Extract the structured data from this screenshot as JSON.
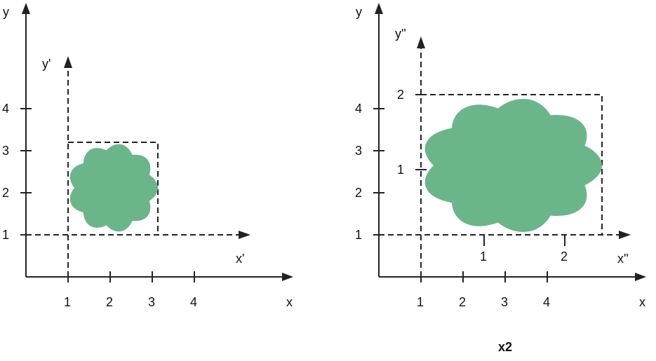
{
  "colors": {
    "shape": "#6bb58a",
    "line": "#222222"
  },
  "left": {
    "axis_x_label": "x",
    "axis_y_label": "y",
    "local_x_label": "x'",
    "local_y_label": "y'",
    "x_ticks": [
      "1",
      "2",
      "3",
      "4"
    ],
    "y_ticks": [
      "1",
      "2",
      "3",
      "4"
    ]
  },
  "right": {
    "axis_x_label": "x",
    "axis_y_label": "y",
    "local_x_label": "x''",
    "local_y_label": "y''",
    "x_ticks": [
      "1",
      "2",
      "3",
      "4"
    ],
    "y_ticks": [
      "1",
      "2",
      "3",
      "4"
    ],
    "local_x_ticks": [
      "1",
      "2"
    ],
    "local_y_ticks": [
      "1",
      "2"
    ],
    "scale_label": "x2"
  }
}
